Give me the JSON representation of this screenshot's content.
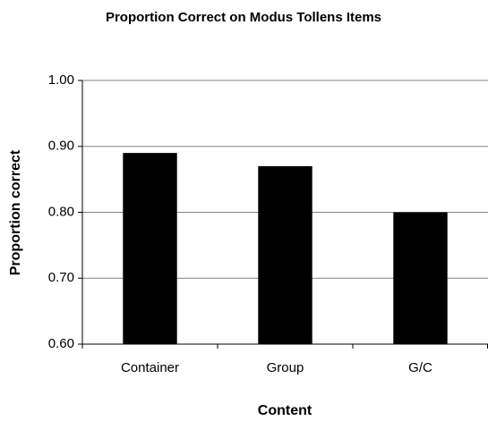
{
  "chart_data": {
    "type": "bar",
    "title": "Proportion Correct on Modus Tollens Items",
    "x_label": "Content",
    "y_label": "Proportion correct",
    "categories": [
      "Container",
      "Group",
      "G/C"
    ],
    "values": [
      0.89,
      0.87,
      0.8
    ],
    "color": "#000000",
    "ylim": [
      0.6,
      1.0
    ],
    "yticks": [
      {
        "value": 0.6,
        "label": "0.60"
      },
      {
        "value": 0.7,
        "label": "0.70"
      },
      {
        "value": 0.8,
        "label": "0.80"
      },
      {
        "value": 0.9,
        "label": "0.90"
      },
      {
        "value": 1.0,
        "label": "1.00"
      }
    ],
    "grid": true
  }
}
